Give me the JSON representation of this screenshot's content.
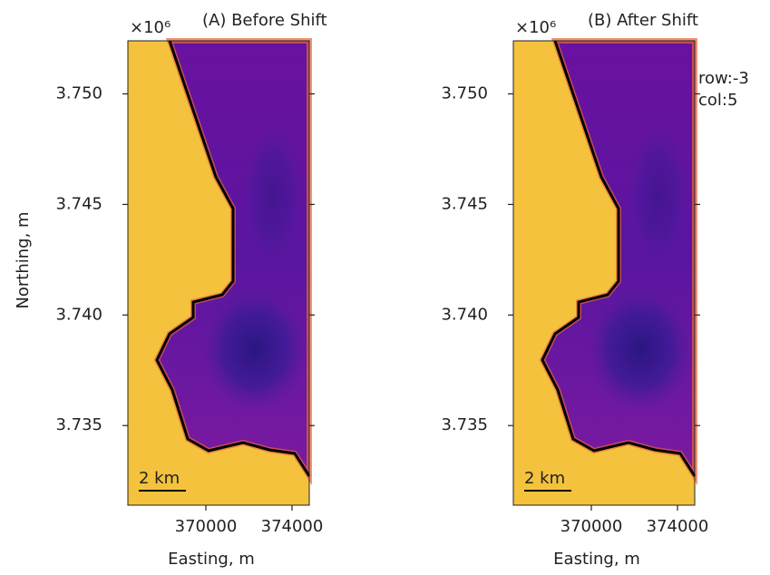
{
  "chart_data": [
    {
      "type": "map",
      "title": "(A) Before Shift",
      "offset_text": "×10⁶",
      "xlabel": "Easting, m",
      "ylabel": "Northing, m",
      "scale_bar_label": "2 km",
      "xlim": [
        366380,
        374800
      ],
      "ylim": [
        3.7314,
        3.7524
      ],
      "xticks": [
        370000,
        374000
      ],
      "yticks": [
        {
          "value": 3.735,
          "label": "3.735"
        },
        {
          "value": 3.74,
          "label": "3.740"
        },
        {
          "value": 3.745,
          "label": "3.745"
        },
        {
          "value": 3.75,
          "label": "3.750"
        }
      ]
    },
    {
      "type": "map",
      "title": "(B) After Shift",
      "offset_text": "×10⁶",
      "xlabel": "Easting, m",
      "scale_bar_label": "2 km",
      "annotation": [
        "row:-3",
        "col:5"
      ],
      "xlim": [
        366380,
        374800
      ],
      "ylim": [
        3.7314,
        3.7524
      ],
      "xticks": [
        370000,
        374000
      ],
      "yticks": [
        {
          "value": 3.735,
          "label": "3.735"
        },
        {
          "value": 3.74,
          "label": "3.740"
        },
        {
          "value": 3.745,
          "label": "3.745"
        },
        {
          "value": 3.75,
          "label": "3.750"
        }
      ]
    }
  ]
}
